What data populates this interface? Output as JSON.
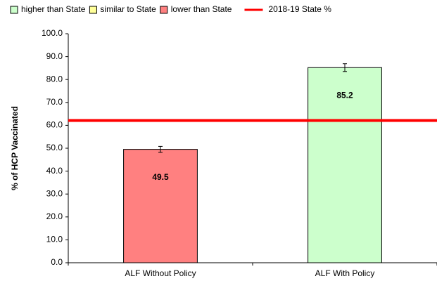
{
  "chart_data": {
    "type": "bar",
    "y_label": "% of HCP Vaccinated",
    "categories": [
      "ALF Without Policy",
      "ALF With Policy"
    ],
    "values": [
      49.5,
      85.2
    ],
    "errors": [
      1.3,
      1.7
    ],
    "colors": [
      "#ff8080",
      "#ccffcc"
    ],
    "ylim": [
      0,
      100
    ],
    "yticks": [
      {
        "value": 0,
        "label": "0.0"
      },
      {
        "value": 10,
        "label": "10.0"
      },
      {
        "value": 20,
        "label": "20.0"
      },
      {
        "value": 30,
        "label": "30.0"
      },
      {
        "value": 40,
        "label": "40.0"
      },
      {
        "value": 50,
        "label": "50.0"
      },
      {
        "value": 60,
        "label": "60.0"
      },
      {
        "value": 70,
        "label": "70.0"
      },
      {
        "value": 80,
        "label": "80.0"
      },
      {
        "value": 90,
        "label": "90.0"
      },
      {
        "value": 100,
        "label": "100.0"
      }
    ],
    "legend": [
      {
        "name": "higher than State",
        "color": "#ccffcc"
      },
      {
        "name": "similar to State",
        "color": "#ffff99"
      },
      {
        "name": "lower than State",
        "color": "#ff8080"
      }
    ],
    "reference_line": {
      "name": "2018-19  State %",
      "value": 62.1,
      "color": "#ff0000"
    }
  }
}
